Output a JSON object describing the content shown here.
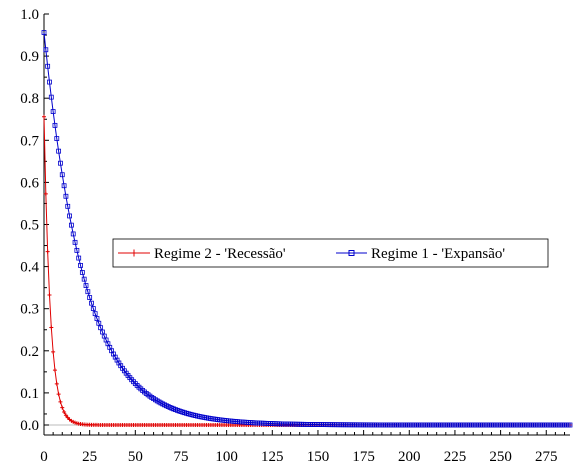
{
  "chart_data": {
    "type": "line",
    "title": "",
    "xlabel": "",
    "ylabel": "",
    "xlim": [
      0,
      288
    ],
    "ylim": [
      0,
      1
    ],
    "x_ticks": [
      "0",
      "25",
      "50",
      "75",
      "100",
      "125",
      "150",
      "175",
      "200",
      "225",
      "250",
      "275"
    ],
    "y_ticks": [
      "0.0",
      "0.1",
      "0.2",
      "0.3",
      "0.4",
      "0.5",
      "0.6",
      "0.7",
      "0.8",
      "0.9",
      "1.0"
    ],
    "grid": false,
    "legend_position": "center-right",
    "series": [
      {
        "name": "Regime 2 - 'Recessão'",
        "color": "#e00000",
        "marker": "plus",
        "x_range": [
          0,
          288
        ],
        "model": "exponential decay",
        "start_value": 0.75,
        "decay_per_step": 0.75,
        "sample_points": [
          [
            0,
            0.75
          ],
          [
            1,
            0.565
          ],
          [
            2,
            0.425
          ],
          [
            3,
            0.32
          ],
          [
            4,
            0.24
          ],
          [
            5,
            0.18
          ],
          [
            10,
            0.042
          ],
          [
            15,
            0.01
          ],
          [
            20,
            0.002
          ],
          [
            25,
            0.0
          ]
        ]
      },
      {
        "name": "Regime 1 - 'Expansão'",
        "color": "#0000cc",
        "marker": "square",
        "x_range": [
          0,
          288
        ],
        "model": "exponential decay",
        "start_value": 0.955,
        "decay_per_step": 0.956,
        "sample_points": [
          [
            0,
            0.955
          ],
          [
            10,
            0.6
          ],
          [
            25,
            0.31
          ],
          [
            50,
            0.1
          ],
          [
            75,
            0.032
          ],
          [
            100,
            0.011
          ],
          [
            125,
            0.004
          ],
          [
            150,
            0.001
          ],
          [
            175,
            0.0
          ]
        ]
      }
    ]
  }
}
